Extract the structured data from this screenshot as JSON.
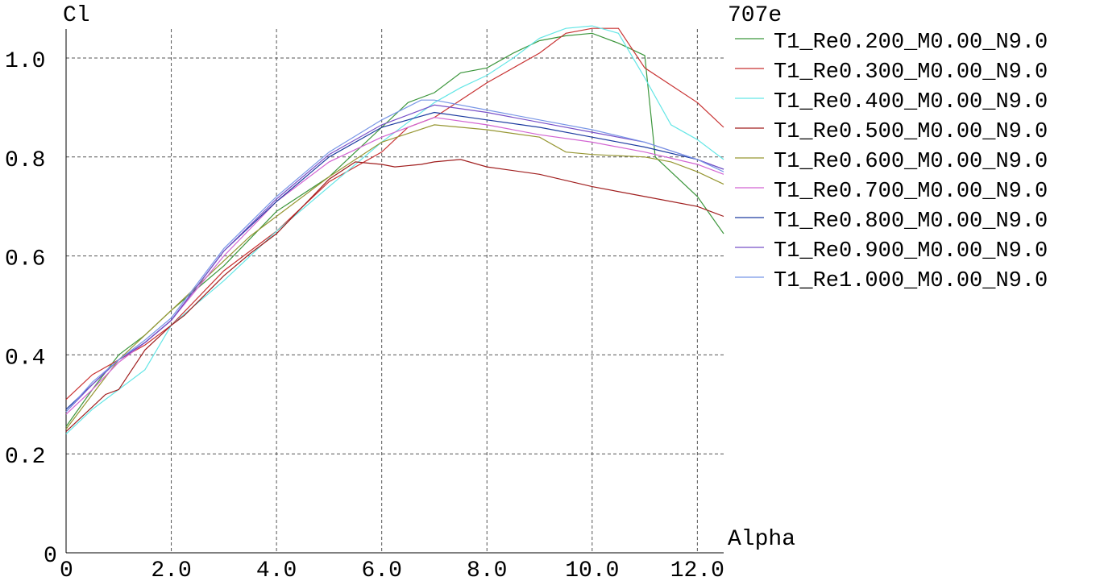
{
  "chart_data": {
    "type": "line",
    "title": "707e",
    "xlabel": "Alpha",
    "ylabel": "Cl",
    "xlim": [
      0,
      12.5
    ],
    "ylim": [
      0,
      1.0
    ],
    "grid": true,
    "legend_position": "right",
    "x_ticks": [
      "0",
      "2.0",
      "4.0",
      "6.0",
      "8.0",
      "10.0",
      "12.0"
    ],
    "y_ticks": [
      "0",
      "0.2",
      "0.4",
      "0.6",
      "0.8",
      "1.0"
    ],
    "series": [
      {
        "name": "T1_Re0.200_M0.00_N9.0",
        "color": "#3c963c",
        "x": [
          0,
          0.5,
          1,
          1.5,
          2,
          3,
          3.5,
          4,
          5,
          5.5,
          6,
          6.5,
          7,
          7.5,
          8,
          8.5,
          9,
          9.5,
          10,
          10.5,
          11,
          11.2,
          12,
          12.5
        ],
        "y": [
          0.255,
          0.33,
          0.4,
          0.44,
          0.49,
          0.58,
          0.635,
          0.69,
          0.76,
          0.81,
          0.86,
          0.91,
          0.93,
          0.97,
          0.98,
          1.01,
          1.035,
          1.045,
          1.05,
          1.03,
          1.005,
          0.8,
          0.72,
          0.645
        ]
      },
      {
        "name": "T1_Re0.300_M0.00_N9.0",
        "color": "#c83232",
        "x": [
          0,
          0.5,
          1,
          1.5,
          2,
          3,
          4,
          5,
          6,
          6.5,
          7,
          8,
          9,
          9.5,
          10,
          10.5,
          11,
          12,
          12.5
        ],
        "y": [
          0.31,
          0.36,
          0.39,
          0.42,
          0.46,
          0.57,
          0.65,
          0.75,
          0.81,
          0.86,
          0.88,
          0.95,
          1.01,
          1.05,
          1.06,
          1.06,
          0.98,
          0.91,
          0.86
        ]
      },
      {
        "name": "T1_Re0.400_M0.00_N9.0",
        "color": "#64e6e6",
        "x": [
          0,
          0.5,
          1,
          1.5,
          2,
          3,
          4,
          5,
          6,
          6.5,
          7,
          7.5,
          8,
          8.5,
          9,
          9.5,
          10,
          10.5,
          11,
          11.5,
          12,
          12.5
        ],
        "y": [
          0.24,
          0.29,
          0.33,
          0.37,
          0.46,
          0.55,
          0.65,
          0.74,
          0.83,
          0.87,
          0.91,
          0.94,
          0.965,
          1.0,
          1.04,
          1.06,
          1.065,
          1.05,
          0.96,
          0.865,
          0.835,
          0.795
        ]
      },
      {
        "name": "T1_Re0.500_M0.00_N9.0",
        "color": "#a01e1e",
        "x": [
          0,
          0.5,
          0.75,
          1,
          1.5,
          2,
          2.25,
          3,
          3.5,
          4,
          5,
          5.5,
          6,
          6.25,
          6.75,
          7,
          7.5,
          8,
          9,
          10,
          11,
          12,
          12.5
        ],
        "y": [
          0.245,
          0.295,
          0.32,
          0.33,
          0.41,
          0.46,
          0.48,
          0.56,
          0.605,
          0.645,
          0.755,
          0.79,
          0.785,
          0.78,
          0.785,
          0.79,
          0.795,
          0.78,
          0.765,
          0.74,
          0.72,
          0.7,
          0.68
        ]
      },
      {
        "name": "T1_Re0.600_M0.00_N9.0",
        "color": "#969632",
        "x": [
          0,
          0.5,
          1,
          1.5,
          2,
          3,
          3.5,
          4,
          5,
          6,
          7,
          8,
          9,
          9.5,
          10,
          11,
          11.5,
          12,
          12.5
        ],
        "y": [
          0.25,
          0.32,
          0.39,
          0.44,
          0.49,
          0.59,
          0.64,
          0.68,
          0.76,
          0.83,
          0.865,
          0.855,
          0.84,
          0.81,
          0.805,
          0.8,
          0.79,
          0.77,
          0.745
        ]
      },
      {
        "name": "T1_Re0.700_M0.00_N9.0",
        "color": "#d264d2",
        "x": [
          0,
          0.5,
          1,
          1.5,
          2,
          3,
          4,
          5,
          6,
          7,
          8,
          9,
          10,
          11,
          12,
          12.5
        ],
        "y": [
          0.28,
          0.33,
          0.385,
          0.425,
          0.47,
          0.6,
          0.71,
          0.79,
          0.84,
          0.88,
          0.865,
          0.845,
          0.83,
          0.81,
          0.785,
          0.765
        ]
      },
      {
        "name": "T1_Re0.800_M0.00_N9.0",
        "color": "#1e3ca0",
        "x": [
          0,
          0.5,
          1,
          1.5,
          2,
          3,
          4,
          5,
          6,
          7,
          8,
          9,
          10,
          11,
          12,
          12.5
        ],
        "y": [
          0.29,
          0.34,
          0.39,
          0.425,
          0.47,
          0.61,
          0.71,
          0.8,
          0.86,
          0.89,
          0.875,
          0.86,
          0.84,
          0.82,
          0.795,
          0.775
        ]
      },
      {
        "name": "T1_Re0.900_M0.00_N9.0",
        "color": "#7850c8",
        "x": [
          0,
          0.5,
          1,
          1.5,
          2,
          3,
          4,
          5,
          6,
          7,
          8,
          9,
          10,
          11,
          12,
          12.5
        ],
        "y": [
          0.285,
          0.34,
          0.39,
          0.425,
          0.47,
          0.61,
          0.715,
          0.805,
          0.865,
          0.905,
          0.89,
          0.87,
          0.85,
          0.83,
          0.795,
          0.775
        ]
      },
      {
        "name": "T1_Re1.000_M0.00_N9.0",
        "color": "#7896e6",
        "x": [
          0,
          0.5,
          1,
          1.5,
          2,
          3,
          4,
          5,
          6,
          6.75,
          7,
          8,
          9,
          10,
          11,
          12,
          12.5
        ],
        "y": [
          0.285,
          0.345,
          0.39,
          0.43,
          0.475,
          0.615,
          0.72,
          0.81,
          0.875,
          0.915,
          0.915,
          0.895,
          0.875,
          0.855,
          0.83,
          0.795,
          0.77
        ]
      }
    ]
  }
}
